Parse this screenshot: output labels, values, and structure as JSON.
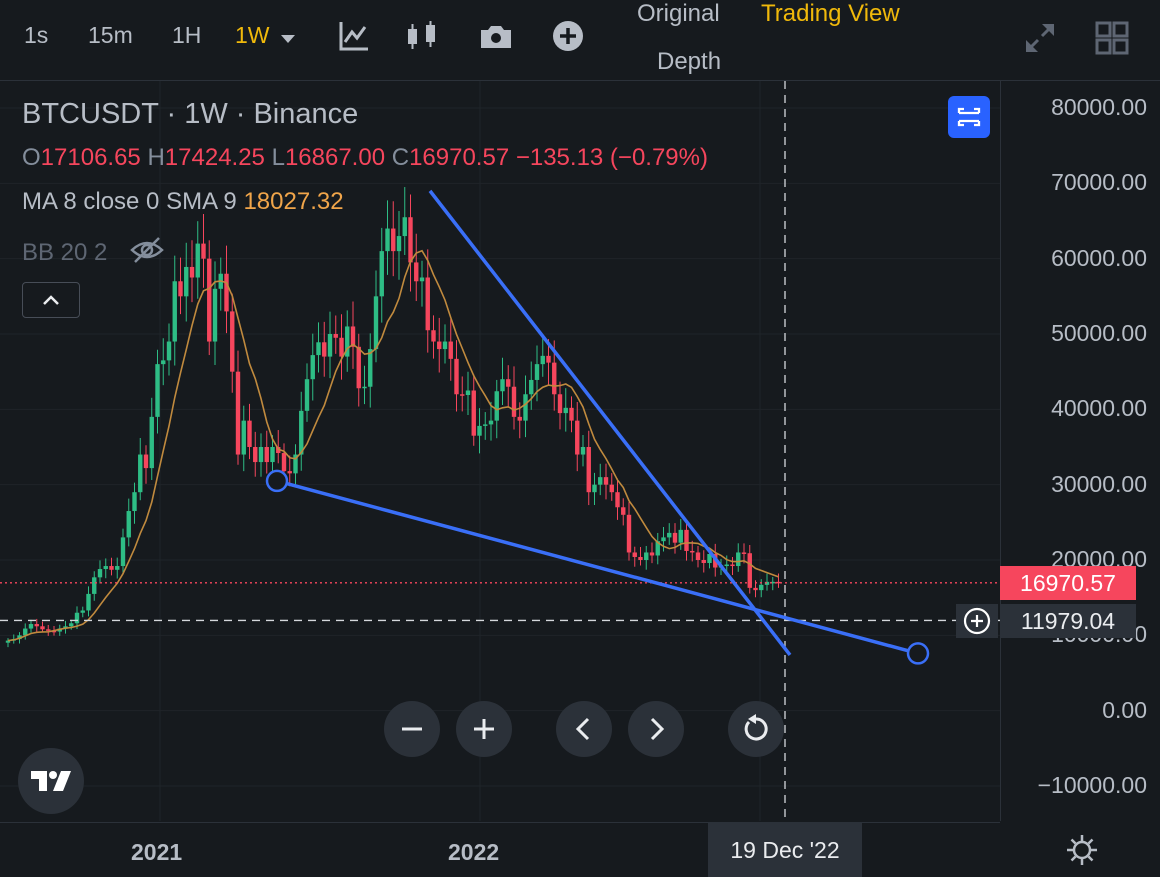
{
  "toolbar": {
    "intervals": [
      "1s",
      "15m",
      "1H",
      "1W"
    ],
    "active_interval": "1W",
    "views": {
      "original": "Original",
      "trading_view": "Trading View",
      "depth": "Depth"
    }
  },
  "legend": {
    "symbol": "BTCUSDT · 1W · Binance",
    "o_label": "O",
    "o": "17106.65",
    "h_label": "H",
    "h": "17424.25",
    "l_label": "L",
    "l": "16867.00",
    "c_label": "C",
    "c": "16970.57",
    "change": "−135.13 (−0.79%)",
    "ma_label": "MA 8 close 0 SMA 9",
    "ma_value": "18027.32",
    "bb_label": "BB 20 2"
  },
  "price_tags": {
    "last": "16970.57",
    "crosshair": "11979.04"
  },
  "time_axis": {
    "crosshair_date": "19 Dec '22"
  },
  "colors": {
    "up": "#2ebd85",
    "down": "#f6465d",
    "accent": "#f0b90b",
    "drawing": "#3a6ff7",
    "ma": "#c08a3e"
  },
  "chart_data": {
    "type": "candlestick",
    "symbol": "BTCUSDT",
    "interval": "1W",
    "y_ticks": [
      80000,
      70000,
      60000,
      50000,
      40000,
      30000,
      20000,
      10000,
      0,
      -10000
    ],
    "y_tick_labels": [
      "80000.00",
      "70000.00",
      "60000.00",
      "50000.00",
      "40000.00",
      "30000.00",
      "20000.00",
      "10000.00",
      "0.00",
      "−10000.00"
    ],
    "x_tick_labels": [
      "2021",
      "2022"
    ],
    "last_price": 16970.57,
    "crosshair_price": 11979.04,
    "crosshair_date": "2022-12-19",
    "closes": [
      9300,
      9500,
      10000,
      10900,
      11500,
      11200,
      10800,
      10600,
      10500,
      10900,
      11200,
      11600,
      13000,
      13300,
      15500,
      17700,
      18800,
      19200,
      18700,
      19200,
      23000,
      26500,
      29000,
      34000,
      32200,
      39000,
      46000,
      46500,
      49000,
      57000,
      55000,
      58900,
      57500,
      62000,
      60000,
      49000,
      56000,
      58000,
      53000,
      45000,
      34000,
      38500,
      35000,
      33000,
      35000,
      33000,
      35000,
      34200,
      31800,
      31500,
      34000,
      39800,
      44000,
      47200,
      48900,
      47000,
      50000,
      49500,
      47000,
      51000,
      48300,
      42800,
      43000,
      48000,
      55000,
      61000,
      64000,
      61000,
      63000,
      65500,
      59500,
      57000,
      57500,
      50500,
      49000,
      48000,
      49000,
      46700,
      42000,
      41900,
      42500,
      36500,
      37800,
      38000,
      38500,
      42400,
      44000,
      43000,
      39000,
      38500,
      42000,
      43900,
      46000,
      47100,
      46200,
      42000,
      39500,
      40200,
      38500,
      34000,
      35000,
      29000,
      30000,
      31000,
      30000,
      29000,
      27000,
      26000,
      21000,
      20400,
      20000,
      21000,
      20600,
      22500,
      23000,
      23600,
      22300,
      24000,
      21200,
      21000,
      20000,
      19600,
      20800,
      19000,
      19300,
      19400,
      19200,
      21000,
      20900,
      16300,
      16000,
      16700,
      17100,
      17100,
      16970.57
    ],
    "drawings": [
      {
        "type": "trendline",
        "from": {
          "time": "2021-07-19",
          "price": 30500
        },
        "to": {
          "time": "2023-05-01",
          "price": 7600
        }
      },
      {
        "type": "trendline",
        "from": {
          "time": "2021-11-08",
          "price": 69000
        },
        "to": {
          "time": "2023-01-02",
          "price": 7400
        }
      }
    ]
  },
  "controls": {
    "zoom_out": "−",
    "zoom_in": "+",
    "prev": "‹",
    "next": "›"
  }
}
